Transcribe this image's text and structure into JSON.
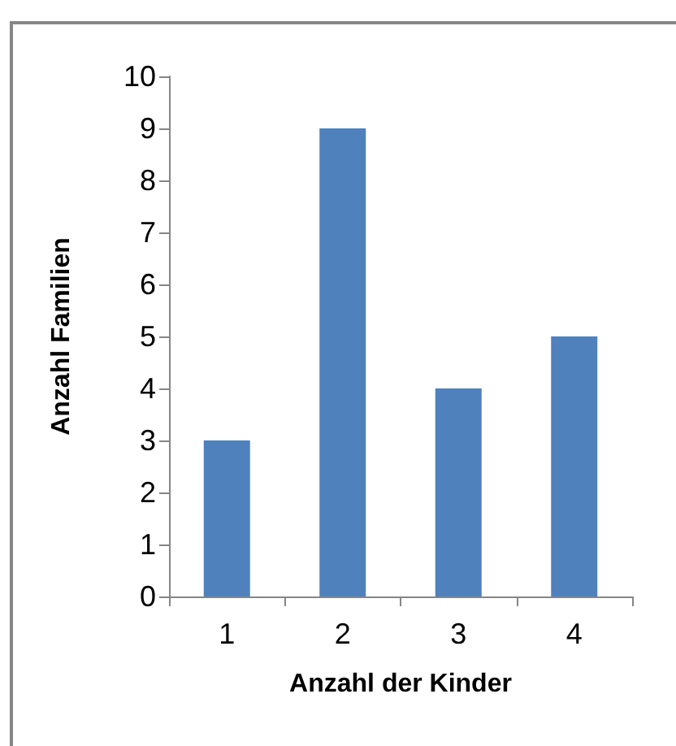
{
  "chart_data": {
    "type": "bar",
    "xlabel": "Anzahl der Kinder",
    "ylabel": "Anzahl Familien",
    "categories": [
      "1",
      "2",
      "3",
      "4"
    ],
    "values": [
      3,
      9,
      4,
      5
    ],
    "color": "#4f81bd",
    "ylim": [
      0,
      10
    ],
    "yticks": [
      0,
      1,
      2,
      3,
      4,
      5,
      6,
      7,
      8,
      9,
      10
    ],
    "grid": false
  }
}
